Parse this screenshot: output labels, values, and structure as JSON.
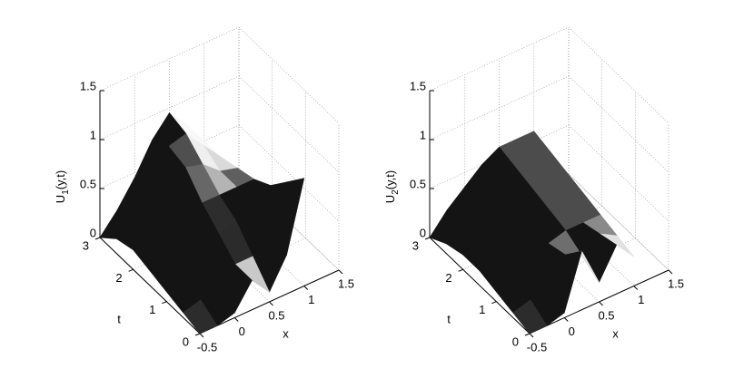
{
  "chart_data": [
    {
      "type": "surface",
      "zlabel": [
        "U",
        "1",
        "(y,t)"
      ],
      "xlabel": "x",
      "ylabel": "t",
      "xlim": [
        -0.5,
        1.5
      ],
      "xticks": [
        -0.5,
        0,
        0.5,
        1,
        1.5
      ],
      "ylim": [
        0,
        3
      ],
      "yticks": [
        0,
        1,
        2,
        3
      ],
      "zlim": [
        0,
        1.5
      ],
      "zticks": [
        0,
        0.5,
        1,
        1.5
      ],
      "grid": true,
      "x": [
        -0.5,
        -0.25,
        0,
        0.25,
        0.5,
        0.75,
        1
      ],
      "y": [
        0,
        0.5,
        1,
        1.5,
        2,
        2.5,
        3
      ],
      "z": [
        [
          0,
          0,
          0.05,
          0.3,
          0.1,
          0.4,
          1.1
        ],
        [
          0.05,
          0.1,
          0.2,
          0.3,
          0.3,
          0.6,
          0.9
        ],
        [
          0.1,
          0.2,
          0.35,
          0.45,
          0.5,
          0.6,
          0.7
        ],
        [
          0.15,
          0.3,
          0.5,
          0.6,
          0.6,
          0.6,
          0.6
        ],
        [
          0.2,
          0.4,
          0.6,
          0.8,
          0.75,
          0.6,
          0.55
        ],
        [
          0.15,
          0.35,
          0.55,
          0.85,
          0.9,
          0.7,
          0.5
        ],
        [
          0,
          0.2,
          0.45,
          0.75,
          0.95,
          0.75,
          0.5
        ]
      ]
    },
    {
      "type": "surface",
      "zlabel": [
        "U",
        "2",
        "(y,t)"
      ],
      "xlabel": "x",
      "ylabel": "t",
      "xlim": [
        -0.5,
        1.5
      ],
      "xticks": [
        -0.5,
        0,
        0.5,
        1,
        1.5
      ],
      "ylim": [
        0,
        3
      ],
      "yticks": [
        0,
        1,
        2,
        3
      ],
      "zlim": [
        0,
        1.5
      ],
      "zticks": [
        0,
        0.5,
        1,
        1.5
      ],
      "grid": true,
      "x": [
        -0.5,
        -0.25,
        0,
        0.25,
        0.5,
        0.75,
        1
      ],
      "y": [
        0,
        0.5,
        1,
        1.5,
        2,
        2.5,
        3
      ],
      "z": [
        [
          0,
          0,
          0.05,
          0.6,
          0.2,
          0.5,
          0.3
        ],
        [
          0.05,
          0.1,
          0.2,
          0.4,
          0.3,
          0.45,
          0.35
        ],
        [
          0.1,
          0.2,
          0.3,
          0.35,
          0.4,
          0.4,
          0.4
        ],
        [
          0.15,
          0.25,
          0.35,
          0.4,
          0.45,
          0.45,
          0.45
        ],
        [
          0.15,
          0.3,
          0.4,
          0.45,
          0.5,
          0.5,
          0.5
        ],
        [
          0.1,
          0.25,
          0.4,
          0.5,
          0.55,
          0.55,
          0.55
        ],
        [
          0,
          0.2,
          0.35,
          0.5,
          0.6,
          0.6,
          0.6
        ]
      ]
    }
  ]
}
